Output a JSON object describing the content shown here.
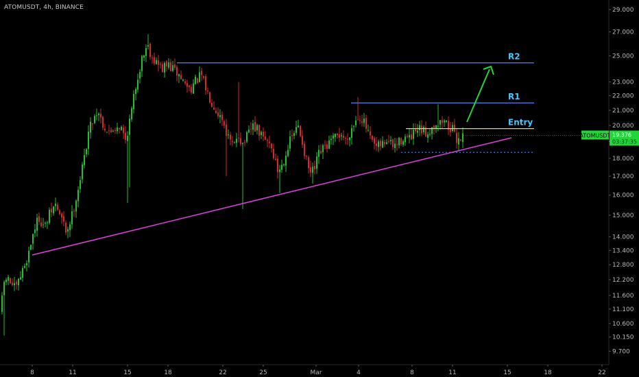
{
  "header": {
    "title": "ATOMUSDT, 4h, BINANCE"
  },
  "chart_data": {
    "type": "candlestick",
    "y_scale": "log",
    "ylim": [
      9.3,
      30.0
    ],
    "y_ticks": [
      "29.000",
      "27.000",
      "25.000",
      "23.000",
      "22.000",
      "21.000",
      "20.000",
      "19.000",
      "18.000",
      "17.000",
      "16.000",
      "15.000",
      "14.000",
      "13.400",
      "12.800",
      "12.200",
      "11.600",
      "11.100",
      "10.600",
      "10.150",
      "9.700"
    ],
    "x_ticks": [
      "8",
      "11",
      "15",
      "18",
      "22",
      "25",
      "Mar",
      "4",
      "8",
      "11",
      "15",
      "18",
      "22"
    ],
    "colors": {
      "up": "#22c32e",
      "down": "#d42a2a",
      "background": "#000000"
    },
    "levels": [
      {
        "name": "R2",
        "value": 24.45,
        "color": "#3d7ee8",
        "label_color": "#4fc3f7"
      },
      {
        "name": "R1",
        "value": 21.5,
        "color": "#3d7ee8",
        "label_color": "#4fc3f7"
      },
      {
        "name": "Entry",
        "value": 19.8,
        "color": "#e8d84a",
        "label_color": "#4fc3f7"
      }
    ],
    "support": {
      "value": 18.35,
      "color": "#3d7ee8"
    },
    "trendline": {
      "color": "#e040e0"
    },
    "projection_arrow": {
      "color": "#22d63a"
    },
    "price_badge": {
      "symbol": "ATOMUSDT",
      "price": "19.376",
      "countdown": "03:37:35",
      "color": "#22d63a"
    },
    "path_points": [
      [
        0,
        11.0
      ],
      [
        6,
        12.3
      ],
      [
        14,
        12.1
      ],
      [
        22,
        11.8
      ],
      [
        30,
        12.4
      ],
      [
        40,
        13.2
      ],
      [
        48,
        14.3
      ],
      [
        56,
        14.9
      ],
      [
        64,
        14.4
      ],
      [
        72,
        15.1
      ],
      [
        80,
        15.5
      ],
      [
        88,
        14.9
      ],
      [
        96,
        14.2
      ],
      [
        104,
        15.0
      ],
      [
        112,
        16.2
      ],
      [
        120,
        17.6
      ],
      [
        128,
        19.6
      ],
      [
        135,
        20.5
      ],
      [
        142,
        21.0
      ],
      [
        150,
        20.0
      ],
      [
        158,
        19.5
      ],
      [
        166,
        19.9
      ],
      [
        174,
        20.0
      ],
      [
        182,
        19.1
      ],
      [
        190,
        20.7
      ],
      [
        198,
        23.0
      ],
      [
        206,
        24.8
      ],
      [
        214,
        26.0
      ],
      [
        220,
        25.0
      ],
      [
        228,
        24.4
      ],
      [
        236,
        24.0
      ],
      [
        244,
        24.3
      ],
      [
        252,
        23.9
      ],
      [
        260,
        23.5
      ],
      [
        268,
        22.9
      ],
      [
        276,
        22.5
      ],
      [
        284,
        23.0
      ],
      [
        292,
        23.5
      ],
      [
        300,
        22.4
      ],
      [
        308,
        21.6
      ],
      [
        316,
        20.9
      ],
      [
        324,
        20.4
      ],
      [
        332,
        19.2
      ],
      [
        340,
        18.6
      ],
      [
        346,
        19.6
      ],
      [
        352,
        18.8
      ],
      [
        360,
        19.3
      ],
      [
        368,
        20.0
      ],
      [
        376,
        19.6
      ],
      [
        384,
        19.1
      ],
      [
        392,
        19.0
      ],
      [
        398,
        18.2
      ],
      [
        404,
        17.3
      ],
      [
        410,
        17.6
      ],
      [
        418,
        18.6
      ],
      [
        426,
        19.4
      ],
      [
        434,
        19.9
      ],
      [
        440,
        19.0
      ],
      [
        446,
        17.8
      ],
      [
        452,
        17.1
      ],
      [
        458,
        17.4
      ],
      [
        464,
        18.2
      ],
      [
        472,
        18.6
      ],
      [
        480,
        18.9
      ],
      [
        488,
        19.2
      ],
      [
        496,
        19.5
      ],
      [
        504,
        19.0
      ],
      [
        510,
        19.7
      ],
      [
        516,
        20.2
      ],
      [
        522,
        20.7
      ],
      [
        528,
        20.4
      ],
      [
        534,
        19.7
      ],
      [
        540,
        19.0
      ],
      [
        548,
        18.6
      ],
      [
        556,
        18.8
      ],
      [
        564,
        19.1
      ],
      [
        572,
        18.7
      ],
      [
        580,
        18.9
      ],
      [
        588,
        19.3
      ],
      [
        596,
        19.1
      ],
      [
        604,
        19.5
      ],
      [
        612,
        19.7
      ],
      [
        620,
        19.5
      ],
      [
        628,
        19.8
      ],
      [
        634,
        20.2
      ],
      [
        640,
        20.1
      ],
      [
        646,
        20.4
      ],
      [
        652,
        20.0
      ],
      [
        658,
        19.8
      ],
      [
        664,
        19.1
      ],
      [
        670,
        19.25
      ],
      [
        676,
        19.38
      ]
    ]
  }
}
